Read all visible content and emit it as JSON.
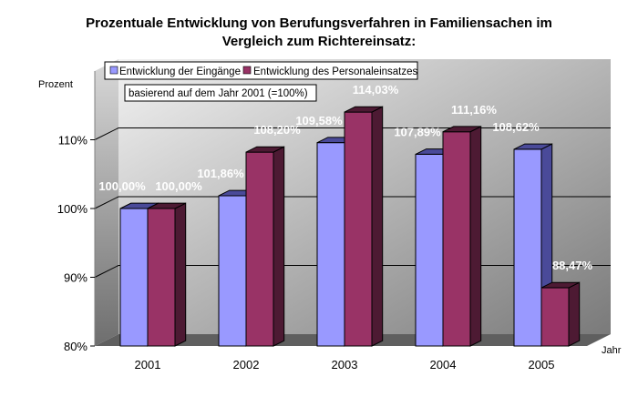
{
  "chart_data": {
    "type": "bar",
    "title_line1": "Prozentuale Entwicklung von Berufungsverfahren in Familiensachen im",
    "title_line2": "Vergleich zum Richtereinsatz:",
    "ylabel": "Prozent",
    "xlabel": "Jahr",
    "note": "basierend auf dem Jahr 2001 (=100%)",
    "categories": [
      "2001",
      "2002",
      "2003",
      "2004",
      "2005"
    ],
    "ylim": [
      80,
      120
    ],
    "yticks": [
      80,
      90,
      100,
      110
    ],
    "ytick_labels": [
      "80%",
      "90%",
      "100%",
      "110%"
    ],
    "legend_position": "top-left",
    "grid": true,
    "series": [
      {
        "name": "Entwicklung der Eingänge",
        "color": "#9999ff",
        "side_color": "#4a4a99",
        "values": [
          100.0,
          101.86,
          109.58,
          107.89,
          108.62
        ],
        "labels": [
          "100,00%",
          "101,86%",
          "109,58%",
          "107,89%",
          "108,62%"
        ]
      },
      {
        "name": "Entwicklung des Personaleinsatzes",
        "color": "#993366",
        "side_color": "#4d1a33",
        "values": [
          100.0,
          108.2,
          114.03,
          111.16,
          88.47
        ],
        "labels": [
          "100,00%",
          "108,20%",
          "114,03%",
          "111,16%",
          "88,47%"
        ]
      }
    ]
  }
}
